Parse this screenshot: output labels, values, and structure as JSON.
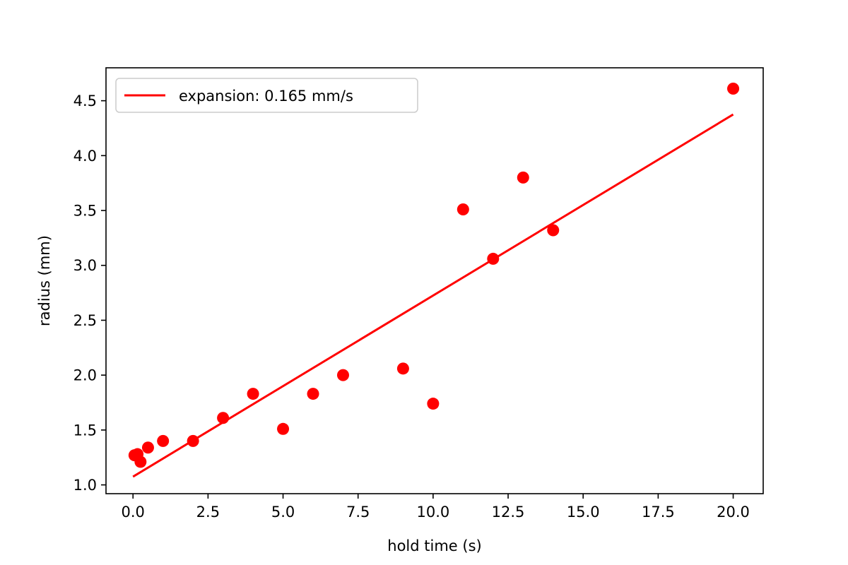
{
  "chart_data": {
    "type": "scatter",
    "title": "",
    "xlabel": "hold time (s)",
    "ylabel": "radius (mm)",
    "xlim": [
      -0.9,
      21.0
    ],
    "ylim": [
      0.92,
      4.8
    ],
    "xticks": [
      0.0,
      2.5,
      5.0,
      7.5,
      10.0,
      12.5,
      15.0,
      17.5,
      20.0
    ],
    "xtick_labels": [
      "0.0",
      "2.5",
      "5.0",
      "7.5",
      "10.0",
      "12.5",
      "15.0",
      "17.5",
      "20.0"
    ],
    "yticks": [
      1.0,
      1.5,
      2.0,
      2.5,
      3.0,
      3.5,
      4.0,
      4.5
    ],
    "ytick_labels": [
      "1.0",
      "1.5",
      "2.0",
      "2.5",
      "3.0",
      "3.5",
      "4.0",
      "4.5"
    ],
    "grid": false,
    "legend_position": "top-left",
    "color": "#ff0000",
    "points": {
      "x": [
        0.05,
        0.15,
        0.25,
        0.5,
        1.0,
        2.0,
        3.0,
        4.0,
        5.0,
        6.0,
        7.0,
        9.0,
        10.0,
        11.0,
        12.0,
        13.0,
        14.0,
        20.0
      ],
      "y": [
        1.27,
        1.28,
        1.21,
        1.34,
        1.4,
        1.4,
        1.61,
        1.83,
        1.51,
        1.83,
        2.0,
        2.06,
        1.74,
        3.51,
        3.06,
        3.8,
        3.32,
        4.61
      ]
    },
    "fit_line": {
      "name": "expansion: 0.165 mm/s",
      "x": [
        0.0,
        20.0
      ],
      "y": [
        1.075,
        4.375
      ]
    }
  }
}
